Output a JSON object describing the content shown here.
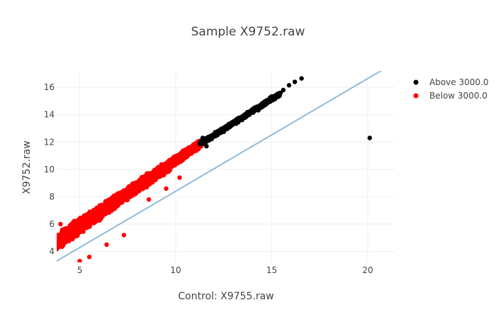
{
  "chart_data": {
    "type": "scatter",
    "title": "Sample X9752.raw",
    "xlabel": "Control: X9755.raw",
    "ylabel": "X9752.raw",
    "xlim": [
      3.8,
      21.4
    ],
    "ylim": [
      3.2,
      17.2
    ],
    "xticks": [
      5,
      10,
      15,
      20
    ],
    "yticks": [
      4,
      6,
      8,
      10,
      12,
      14,
      16
    ],
    "grid": true,
    "legend_position": "top-right",
    "series": [
      {
        "name": "Above 3000.0",
        "color": "#000000",
        "band": {
          "x_start": 11.3,
          "x_end": 15.4,
          "y_at_start": 11.9,
          "y_at_end": 15.5,
          "spread": 0.18
        },
        "points": [
          {
            "x": 15.6,
            "y": 15.8
          },
          {
            "x": 15.9,
            "y": 16.15
          },
          {
            "x": 16.2,
            "y": 16.4
          },
          {
            "x": 16.55,
            "y": 16.65
          },
          {
            "x": 20.1,
            "y": 12.3
          },
          {
            "x": 11.6,
            "y": 11.7
          },
          {
            "x": 11.4,
            "y": 12.3
          }
        ]
      },
      {
        "name": "Below 3000.0",
        "color": "#ff0000",
        "band": {
          "x_start": 3.8,
          "x_end": 11.3,
          "y_at_start": 4.7,
          "y_at_end": 11.9,
          "spread": 0.5
        },
        "points": [
          {
            "x": 4.0,
            "y": 6.0
          },
          {
            "x": 5.0,
            "y": 3.3
          },
          {
            "x": 5.5,
            "y": 3.6
          },
          {
            "x": 6.4,
            "y": 4.5
          },
          {
            "x": 7.3,
            "y": 5.2
          },
          {
            "x": 8.6,
            "y": 7.8
          },
          {
            "x": 9.5,
            "y": 8.6
          },
          {
            "x": 10.2,
            "y": 9.4
          }
        ]
      },
      {
        "name": "",
        "kind": "line",
        "color": "#8fbbd9",
        "x": [
          3.8,
          21.4
        ],
        "y": [
          3.3,
          17.8
        ]
      }
    ]
  }
}
